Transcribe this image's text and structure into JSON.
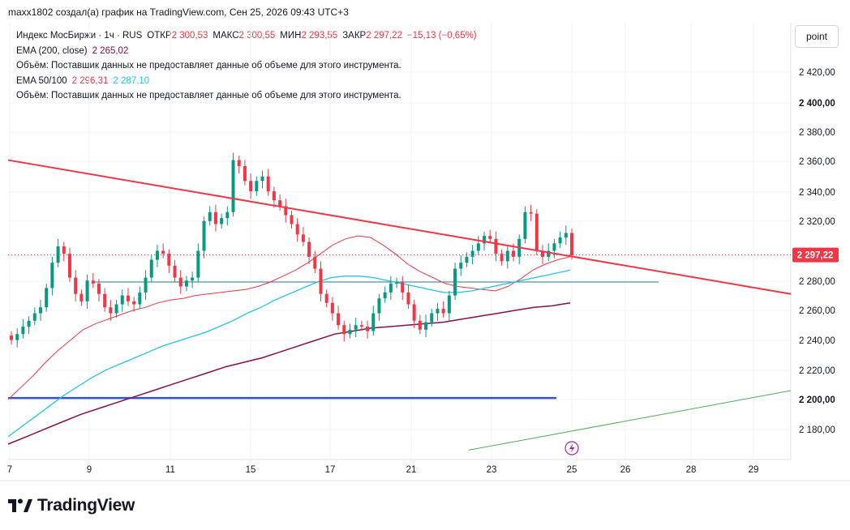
{
  "header": {
    "attribution": "maxx1802 создал(а) график на TradingView.com, Сен 25, 2026 09:43 UTC+3"
  },
  "legend": {
    "symbol": "Индекс МосБиржи · 1ч · RUS",
    "open_label": "ОТКР",
    "open_value": "2 300,53",
    "high_label": "МАКС",
    "high_value": "2 300,55",
    "low_label": "МИН",
    "low_value": "2 293,55",
    "close_label": "ЗАКР",
    "close_value": "2 297,22",
    "change": "−15,13 (−0,65%)",
    "ema200_label": "EMA (200, close)",
    "ema200_value": "2 265,02",
    "volume_note_1": "Объём: Поставщик данных не предоставляет данные об объеме для этого инструмента.",
    "ema50_100_label": "EMA 50/100",
    "ema50_value": "2 296,31",
    "ema100_value": "2 287,10",
    "volume_note_2": "Объём: Поставщик данных не предоставляет данные об объеме для этого инструмента."
  },
  "toolbar": {
    "point_label": "point"
  },
  "branding": {
    "logo_text": "TradingView"
  },
  "colors": {
    "up": "#089981",
    "down": "#f23645",
    "ema50": "#f23645",
    "ema100": "#22c3e6",
    "ema200": "#880e4f",
    "trendline": "#f23645",
    "support_line": "#3156c4",
    "hline": "#2a7f8f",
    "green_line": "#4caf50",
    "price_tag": "#f23645"
  },
  "chart_data": {
    "type": "candlestick",
    "timeframe": "1h",
    "x_ticks": [
      "7",
      "9",
      "11",
      "15",
      "17",
      "21",
      "23",
      "25",
      "26",
      "28",
      "29"
    ],
    "y_ticks": [
      "2 420,00",
      "2 400,00",
      "2 380,00",
      "2 360,00",
      "2 340,00",
      "2 320,00",
      "2 280,00",
      "2 260,00",
      "2 240,00",
      "2 220,00",
      "2 200,00",
      "2 180,00"
    ],
    "ylim": [
      2165,
      2433
    ],
    "last_price": 2297.22,
    "last_price_label": "2 297,22",
    "closes": [
      2240,
      2244,
      2249,
      2253,
      2258,
      2262,
      2275,
      2292,
      2303,
      2298,
      2282,
      2271,
      2266,
      2280,
      2278,
      2271,
      2262,
      2258,
      2264,
      2270,
      2266,
      2264,
      2272,
      2282,
      2294,
      2300,
      2298,
      2290,
      2282,
      2276,
      2280,
      2282,
      2300,
      2320,
      2326,
      2318,
      2322,
      2326,
      2361,
      2357,
      2347,
      2340,
      2347,
      2350,
      2340,
      2334,
      2330,
      2324,
      2318,
      2311,
      2306,
      2296,
      2288,
      2271,
      2265,
      2258,
      2250,
      2244,
      2247,
      2250,
      2249,
      2246,
      2258,
      2268,
      2272,
      2278,
      2279,
      2272,
      2264,
      2253,
      2247,
      2252,
      2258,
      2261,
      2258,
      2270,
      2288,
      2292,
      2296,
      2300,
      2305,
      2310,
      2308,
      2298,
      2293,
      2300,
      2296,
      2308,
      2326,
      2325,
      2300,
      2296,
      2300,
      2305,
      2309,
      2312,
      2297
    ],
    "series": [
      {
        "name": "EMA 50",
        "values": [
          2200,
          2208,
          2216,
          2225,
          2233,
          2240,
          2247,
          2251,
          2254,
          2257,
          2260,
          2262,
          2265,
          2267,
          2268,
          2270,
          2271,
          2272,
          2273,
          2274,
          2276,
          2279,
          2283,
          2287,
          2292,
          2298,
          2304,
          2308,
          2310,
          2309,
          2304,
          2298,
          2291,
          2286,
          2282,
          2278,
          2276,
          2275,
          2274,
          2273,
          2276,
          2281,
          2287,
          2291,
          2294,
          2296
        ]
      },
      {
        "name": "EMA 100",
        "values": [
          2175,
          2182,
          2189,
          2196,
          2203,
          2209,
          2215,
          2220,
          2224,
          2228,
          2232,
          2236,
          2239,
          2242,
          2245,
          2249,
          2253,
          2258,
          2262,
          2267,
          2271,
          2275,
          2279,
          2282,
          2283,
          2283,
          2282,
          2280,
          2278,
          2276,
          2274,
          2272,
          2272,
          2273,
          2275,
          2277,
          2279,
          2281,
          2283,
          2285,
          2287
        ]
      },
      {
        "name": "EMA 200",
        "values": [
          2170,
          2175,
          2180,
          2185,
          2190,
          2194,
          2198,
          2202,
          2206,
          2210,
          2214,
          2218,
          2222,
          2225,
          2228,
          2232,
          2236,
          2240,
          2244,
          2246,
          2248,
          2249,
          2250,
          2251,
          2252,
          2254,
          2256,
          2258,
          2260,
          2262,
          2263,
          2265
        ]
      }
    ],
    "lines": [
      {
        "name": "Trendline",
        "from": 2361,
        "to": 2271
      },
      {
        "name": "Support",
        "value": 2201
      },
      {
        "name": "Horizontal level",
        "value": 2279
      },
      {
        "name": "Rising line",
        "from": 2166,
        "to": 2206
      }
    ],
    "grid": true
  }
}
